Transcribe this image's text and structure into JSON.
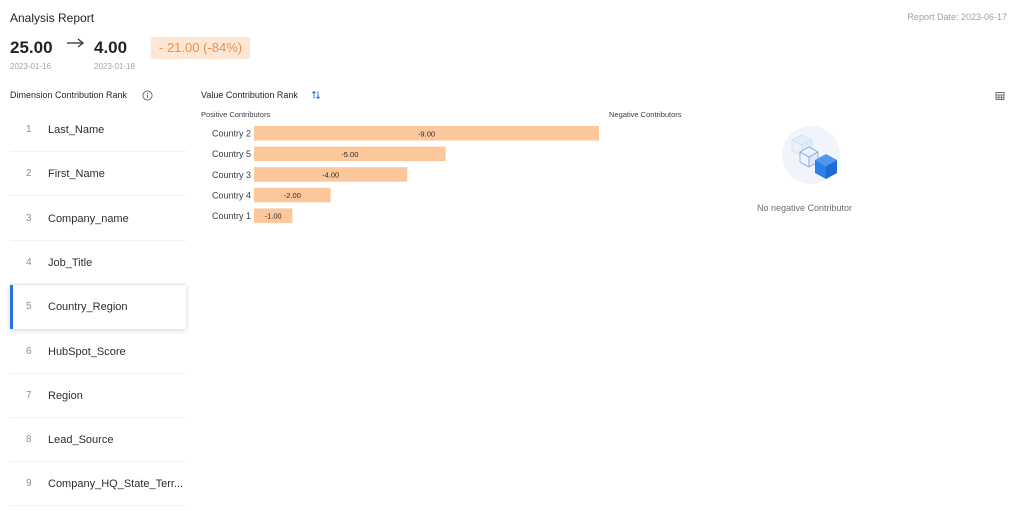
{
  "header": {
    "title": "Analysis Report",
    "report_date": "Report Date: 2023-06-17",
    "from_value": "25.00",
    "from_date": "2023-01-16",
    "to_value": "4.00",
    "to_date": "2023-01-18",
    "delta": "- 21.00 (-84%)"
  },
  "dimension_panel": {
    "title": "Dimension Contribution Rank",
    "selected_index": 4,
    "items": [
      {
        "num": "1",
        "name": "Last_Name"
      },
      {
        "num": "2",
        "name": "First_Name"
      },
      {
        "num": "3",
        "name": "Company_name"
      },
      {
        "num": "4",
        "name": "Job_Title"
      },
      {
        "num": "5",
        "name": "Country_Region"
      },
      {
        "num": "6",
        "name": "HubSpot_Score"
      },
      {
        "num": "7",
        "name": "Region"
      },
      {
        "num": "8",
        "name": "Lead_Source"
      },
      {
        "num": "9",
        "name": "Company_HQ_State_Terr..."
      }
    ]
  },
  "value_panel": {
    "title": "Value Contribution Rank",
    "positive_title": "Positive Contributors",
    "negative_title": "Negative Contributors",
    "no_negative": "No negative Contributor"
  },
  "colors": {
    "accent": "#2f6fe4",
    "bar": "#fcc79a",
    "delta_bg": "#fde7d4",
    "delta_text": "#e8924d"
  },
  "chart_data": {
    "type": "bar",
    "orientation": "horizontal",
    "categories": [
      "Country 2",
      "Country 5",
      "Country 3",
      "Country 4",
      "Country 1"
    ],
    "values": [
      -9.0,
      -5.0,
      -4.0,
      -2.0,
      -1.0
    ],
    "labels": [
      "-9.00",
      "-5.00",
      "-4.00",
      "-2.00",
      "-1.00"
    ]
  }
}
